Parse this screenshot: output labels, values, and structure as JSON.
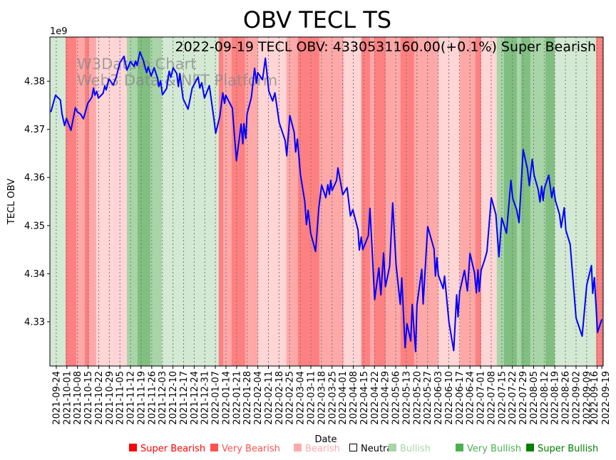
{
  "chart_data": {
    "type": "line",
    "title": "OBV TECL TS",
    "subtitle": "2022-09-19 TECL OBV: 4330531160.00(+0.1%) Super Bearish",
    "watermark": [
      "W3Dataio Chart",
      "Web3 Data & NFT Platform"
    ],
    "xlabel": "Date",
    "ylabel": "TECL OBV",
    "y_offset_label": "1e9",
    "x_start_date": "2021-09-24",
    "x_unit": "days since 2021-09-24",
    "xlim": [
      -4.2,
      360.9
    ],
    "y_unit": "millions",
    "ylim": [
      4320.8,
      4389.2
    ],
    "y_ticks": [
      4330,
      4340,
      4350,
      4360,
      4370,
      4380
    ],
    "y_tick_labels": [
      "4.33",
      "4.34",
      "4.35",
      "4.36",
      "4.37",
      "4.38"
    ],
    "x_tick_labels": [
      "2021-09-24",
      "2021-10-01",
      "2021-10-08",
      "2021-10-15",
      "2021-10-22",
      "2021-10-29",
      "2021-11-05",
      "2021-11-12",
      "2021-11-19",
      "2021-11-26",
      "2021-12-03",
      "2021-12-10",
      "2021-12-17",
      "2021-12-24",
      "2021-12-31",
      "2022-01-07",
      "2022-01-14",
      "2022-01-21",
      "2022-01-28",
      "2022-02-04",
      "2022-02-11",
      "2022-02-18",
      "2022-02-25",
      "2022-03-04",
      "2022-03-11",
      "2022-03-18",
      "2022-03-25",
      "2022-04-01",
      "2022-04-08",
      "2022-04-15",
      "2022-04-22",
      "2022-04-29",
      "2022-05-06",
      "2022-05-13",
      "2022-05-20",
      "2022-05-27",
      "2022-06-03",
      "2022-06-10",
      "2022-06-17",
      "2022-06-24",
      "2022-07-01",
      "2022-07-08",
      "2022-07-15",
      "2022-07-22",
      "2022-07-29",
      "2022-08-05",
      "2022-08-12",
      "2022-08-19",
      "2022-08-26",
      "2022-09-02",
      "2022-09-09",
      "2022-09-16",
      "2022-09-19"
    ],
    "grid": "vertical dotted",
    "series": [
      {
        "name": "OBV",
        "color": "#0000ff",
        "x": [
          -3.6,
          -0.5,
          2.7,
          3.8,
          5.5,
          6.7,
          9.7,
          12.6,
          14.0,
          16.0,
          17.9,
          20.8,
          23.5,
          24.6,
          25.5,
          26.7,
          27.8,
          30.9,
          32.0,
          32.9,
          34.8,
          37.6,
          39.5,
          41.9,
          44.7,
          46.6,
          48.9,
          51.3,
          52.4,
          53.3,
          55.2,
          57.5,
          59.6,
          60.7,
          62.6,
          64.6,
          66.9,
          67.7,
          68.8,
          70.1,
          72.8,
          74.5,
          75.6,
          77.1,
          79.5,
          80.6,
          81.5,
          83.7,
          87.0,
          89.7,
          93.6,
          94.7,
          96.0,
          97.8,
          101.0,
          104.0,
          105.2,
          107.9,
          109.9,
          111.0,
          111.8,
          116.2,
          118.9,
          122.0,
          123.1,
          123.8,
          125.1,
          125.9,
          128.7,
          130.9,
          132.2,
          133.0,
          136.1,
          138.0,
          140.3,
          142.8,
          144.3,
          147.1,
          151.0,
          152.1,
          154.1,
          157.0,
          158.0,
          159.1,
          161.2,
          164.0,
          165.1,
          166.2,
          167.9,
          171.1,
          173.2,
          175.1,
          177.9,
          179.2,
          180.3,
          181.1,
          182.0,
          185.0,
          185.9,
          189.1,
          191.9,
          194.1,
          195.7,
          199.1,
          200.0,
          201.2,
          202.3,
          205.9,
          207.0,
          210.1,
          212.9,
          214.2,
          216.0,
          217.2,
          220.0,
          222.0,
          224.2,
          227.0,
          228.0,
          230.2,
          231.4,
          233.9,
          234.9,
          237.1,
          238.0,
          241.2,
          242.1,
          245.1,
          249.3,
          250.2,
          251.2,
          252.1,
          255.3,
          256.2,
          259.2,
          262.3,
          264.2,
          265.1,
          266.2,
          269.4,
          271.3,
          273.0,
          276.0,
          277.2,
          278.3,
          279.1,
          280.4,
          282.7,
          284.2,
          287.1,
          290.1,
          292.1,
          294.0,
          297.1,
          300.0,
          301.2,
          303.9,
          305.4,
          308.1,
          310.9,
          312.2,
          314.1,
          315.3,
          318.0,
          319.2,
          320.3,
          321.3,
          322.2,
          325.0,
          327.0,
          328.2,
          329.4,
          332.1,
          333.2,
          335.2,
          336.3,
          339.1,
          343.0,
          347.0,
          350.1,
          353.2,
          354.0,
          355.1,
          357.2,
          360.0
        ],
        "values": [
          4373.6,
          4377.1,
          4376.1,
          4373.2,
          4370.8,
          4372.3,
          4369.8,
          4374.5,
          4373.6,
          4373.2,
          4372.2,
          4375.4,
          4376.7,
          4378.6,
          4377.1,
          4377.9,
          4376.5,
          4377.5,
          4379.0,
          4378.2,
          4380.5,
          4379.2,
          4380.8,
          4383.8,
          4385.2,
          4382.3,
          4384.1,
          4383.1,
          4384.2,
          4383.3,
          4386.1,
          4384.3,
          4381.8,
          4383.0,
          4381.1,
          4382.8,
          4380.6,
          4378.9,
          4380.1,
          4377.2,
          4378.5,
          4382.1,
          4380.8,
          4382.8,
          4381.6,
          4378.9,
          4381.6,
          4376.4,
          4374.2,
          4378.6,
          4380.9,
          4378.6,
          4379.7,
          4376.5,
          4379.1,
          4372.2,
          4369.2,
          4372.7,
          4377.6,
          4375.4,
          4377.1,
          4374.4,
          4363.5,
          4371.1,
          4367.0,
          4371.2,
          4368.1,
          4373.2,
          4376.6,
          4382.7,
          4379.6,
          4381.8,
          4380.3,
          4384.8,
          4377.9,
          4375.9,
          4377.6,
          4371.4,
          4367.7,
          4364.5,
          4372.9,
          4369.4,
          4365.3,
          4368.0,
          4360.5,
          4355.0,
          4350.2,
          4353.2,
          4348.4,
          4344.6,
          4353.6,
          4358.4,
          4355.8,
          4358.5,
          4356.5,
          4359.4,
          4357.3,
          4359.4,
          4362.0,
          4356.4,
          4357.9,
          4352.0,
          4353.3,
          4349.1,
          4344.9,
          4347.6,
          4345.0,
          4347.9,
          4353.6,
          4334.6,
          4341.2,
          4335.6,
          4344.3,
          4337.3,
          4341.5,
          4354.7,
          4341.9,
          4333.6,
          4339.1,
          4324.6,
          4329.6,
          4326.0,
          4333.6,
          4323.8,
          4333.5,
          4340.9,
          4333.7,
          4349.8,
          4345.1,
          4339.5,
          4343.3,
          4339.7,
          4336.9,
          4339.5,
          4329.8,
          4324.0,
          4335.6,
          4331.0,
          4336.2,
          4340.7,
          4336.4,
          4344.2,
          4340.2,
          4336.0,
          4340.8,
          4336.3,
          4340.7,
          4342.9,
          4344.6,
          4355.8,
          4352.3,
          4343.5,
          4351.6,
          4348.4,
          4359.4,
          4355.7,
          4353.2,
          4350.6,
          4365.8,
          4361.8,
          4358.3,
          4363.8,
          4360.5,
          4357.5,
          4354.9,
          4358.2,
          4355.2,
          4357.8,
          4360.5,
          4355.8,
          4357.9,
          4355.2,
          4352.3,
          4349.6,
          4353.7,
          4349.0,
          4346.1,
          4330.8,
          4327.0,
          4337.7,
          4341.7,
          4335.9,
          4339.2,
          4327.8,
          4330.5
        ]
      }
    ],
    "sentiment_bands": {
      "boundaries": [
        -4.2,
        6.1,
        13.2,
        18.8,
        21.6,
        26.3,
        46.6,
        53.6,
        62.1,
        69.6,
        107.2,
        110.1,
        115.7,
        124.6,
        133.1,
        151.9,
        159.5,
        173.6,
        189.6,
        201.3,
        207.0,
        209.8,
        217.3,
        227.2,
        236.1,
        252.1,
        266.2,
        276.6,
        280.4,
        290.7,
        295.4,
        303.9,
        306.7,
        312.8,
        322.8,
        328.9,
        356.2,
        360.9
      ],
      "levels": [
        "bullish",
        "super_bearish",
        "very_bearish",
        "super_bearish",
        "very_bearish",
        "bearish",
        "very_bullish",
        "super_bullish",
        "very_bullish",
        "bullish",
        "super_bearish",
        "very_bearish",
        "super_bearish",
        "very_bearish",
        "bearish",
        "very_bearish",
        "super_bearish",
        "very_bearish",
        "bearish",
        "super_bearish",
        "very_bearish",
        "super_bearish",
        "very_bearish",
        "super_bearish",
        "very_bearish",
        "bearish",
        "very_bearish",
        "super_bearish",
        "bearish",
        "very_bullish",
        "super_bullish",
        "very_bullish",
        "super_bullish",
        "very_bullish",
        "super_bullish",
        "bullish",
        "super_bearish"
      ]
    },
    "legend": {
      "placement": "bottom",
      "items": [
        {
          "key": "super_bearish",
          "label": "Super Bearish",
          "color": "#ff0000",
          "band": "#ff8080"
        },
        {
          "key": "very_bearish",
          "label": "Very Bearish",
          "color": "#ff5050",
          "band": "#ffa8a8"
        },
        {
          "key": "bearish",
          "label": "Bearish",
          "color": "#ffaaaa",
          "band": "#ffd5d5"
        },
        {
          "key": "neutral",
          "label": "Neutral",
          "color": "#000000",
          "band": "#ffffff"
        },
        {
          "key": "bullish",
          "label": "Bullish",
          "color": "#a8d5a8",
          "band": "#d3e9d3"
        },
        {
          "key": "very_bullish",
          "label": "Very Bullish",
          "color": "#4caf50",
          "band": "#a8d5a8"
        },
        {
          "key": "super_bullish",
          "label": "Super Bullish",
          "color": "#008000",
          "band": "#80bf80"
        }
      ]
    }
  }
}
